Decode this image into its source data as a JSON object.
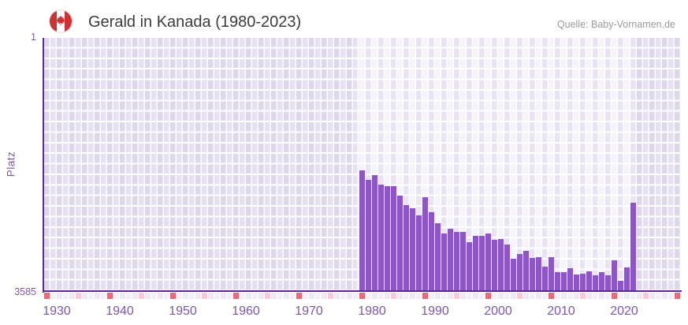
{
  "header": {
    "title": "Gerald in Kanada (1980-2023)",
    "source": "Quelle: Baby-Vornamen.de",
    "flag_icon": "canada-flag"
  },
  "y_axis": {
    "label": "Platz",
    "top_tick": "1",
    "bottom_tick": "3585"
  },
  "chart_data": {
    "type": "bar",
    "title": "Gerald in Kanada (1980-2023)",
    "ylabel": "Platz",
    "y_min": 1,
    "y_max": 3585,
    "y_inverted": true,
    "grid": true,
    "x_domain": [
      1930,
      2030
    ],
    "x_tick_labels": [
      "1930",
      "1940",
      "1950",
      "1960",
      "1970",
      "1980",
      "1990",
      "2000",
      "2010",
      "2020"
    ],
    "highlight_range": [
      1980,
      2023
    ],
    "series": [
      {
        "name": "Platz",
        "x": [
          1980,
          1981,
          1982,
          1983,
          1984,
          1985,
          1986,
          1987,
          1988,
          1989,
          1990,
          1991,
          1992,
          1993,
          1994,
          1995,
          1996,
          1997,
          1998,
          1999,
          2000,
          2001,
          2002,
          2003,
          2004,
          2005,
          2006,
          2007,
          2008,
          2009,
          2010,
          2011,
          2012,
          2013,
          2014,
          2015,
          2016,
          2017,
          2018,
          2019,
          2020,
          2021,
          2022,
          2023
        ],
        "values": [
          1883,
          2017,
          1950,
          2084,
          2107,
          2107,
          2241,
          2375,
          2420,
          2521,
          2263,
          2476,
          2633,
          2779,
          2711,
          2756,
          2756,
          2902,
          2812,
          2812,
          2779,
          2868,
          2857,
          2935,
          3137,
          3070,
          3025,
          3126,
          3115,
          3249,
          3115,
          3327,
          3327,
          3271,
          3361,
          3350,
          3316,
          3372,
          3327,
          3372,
          3159,
          3451,
          3260,
          2339
        ]
      }
    ],
    "colors": {
      "bar": "#8c57c4",
      "axis": "#5b2b8f",
      "tick_label": "#7d58a8",
      "decade_marker": "#df6e79",
      "half_decade_marker": "#f3ccd6",
      "marker_cell_even": "#ece8f4",
      "marker_cell_odd": "#f2eff8",
      "title_text": "#3c3c3c",
      "source_text": "#9b9b9b",
      "flag_red": "#d23134"
    }
  }
}
